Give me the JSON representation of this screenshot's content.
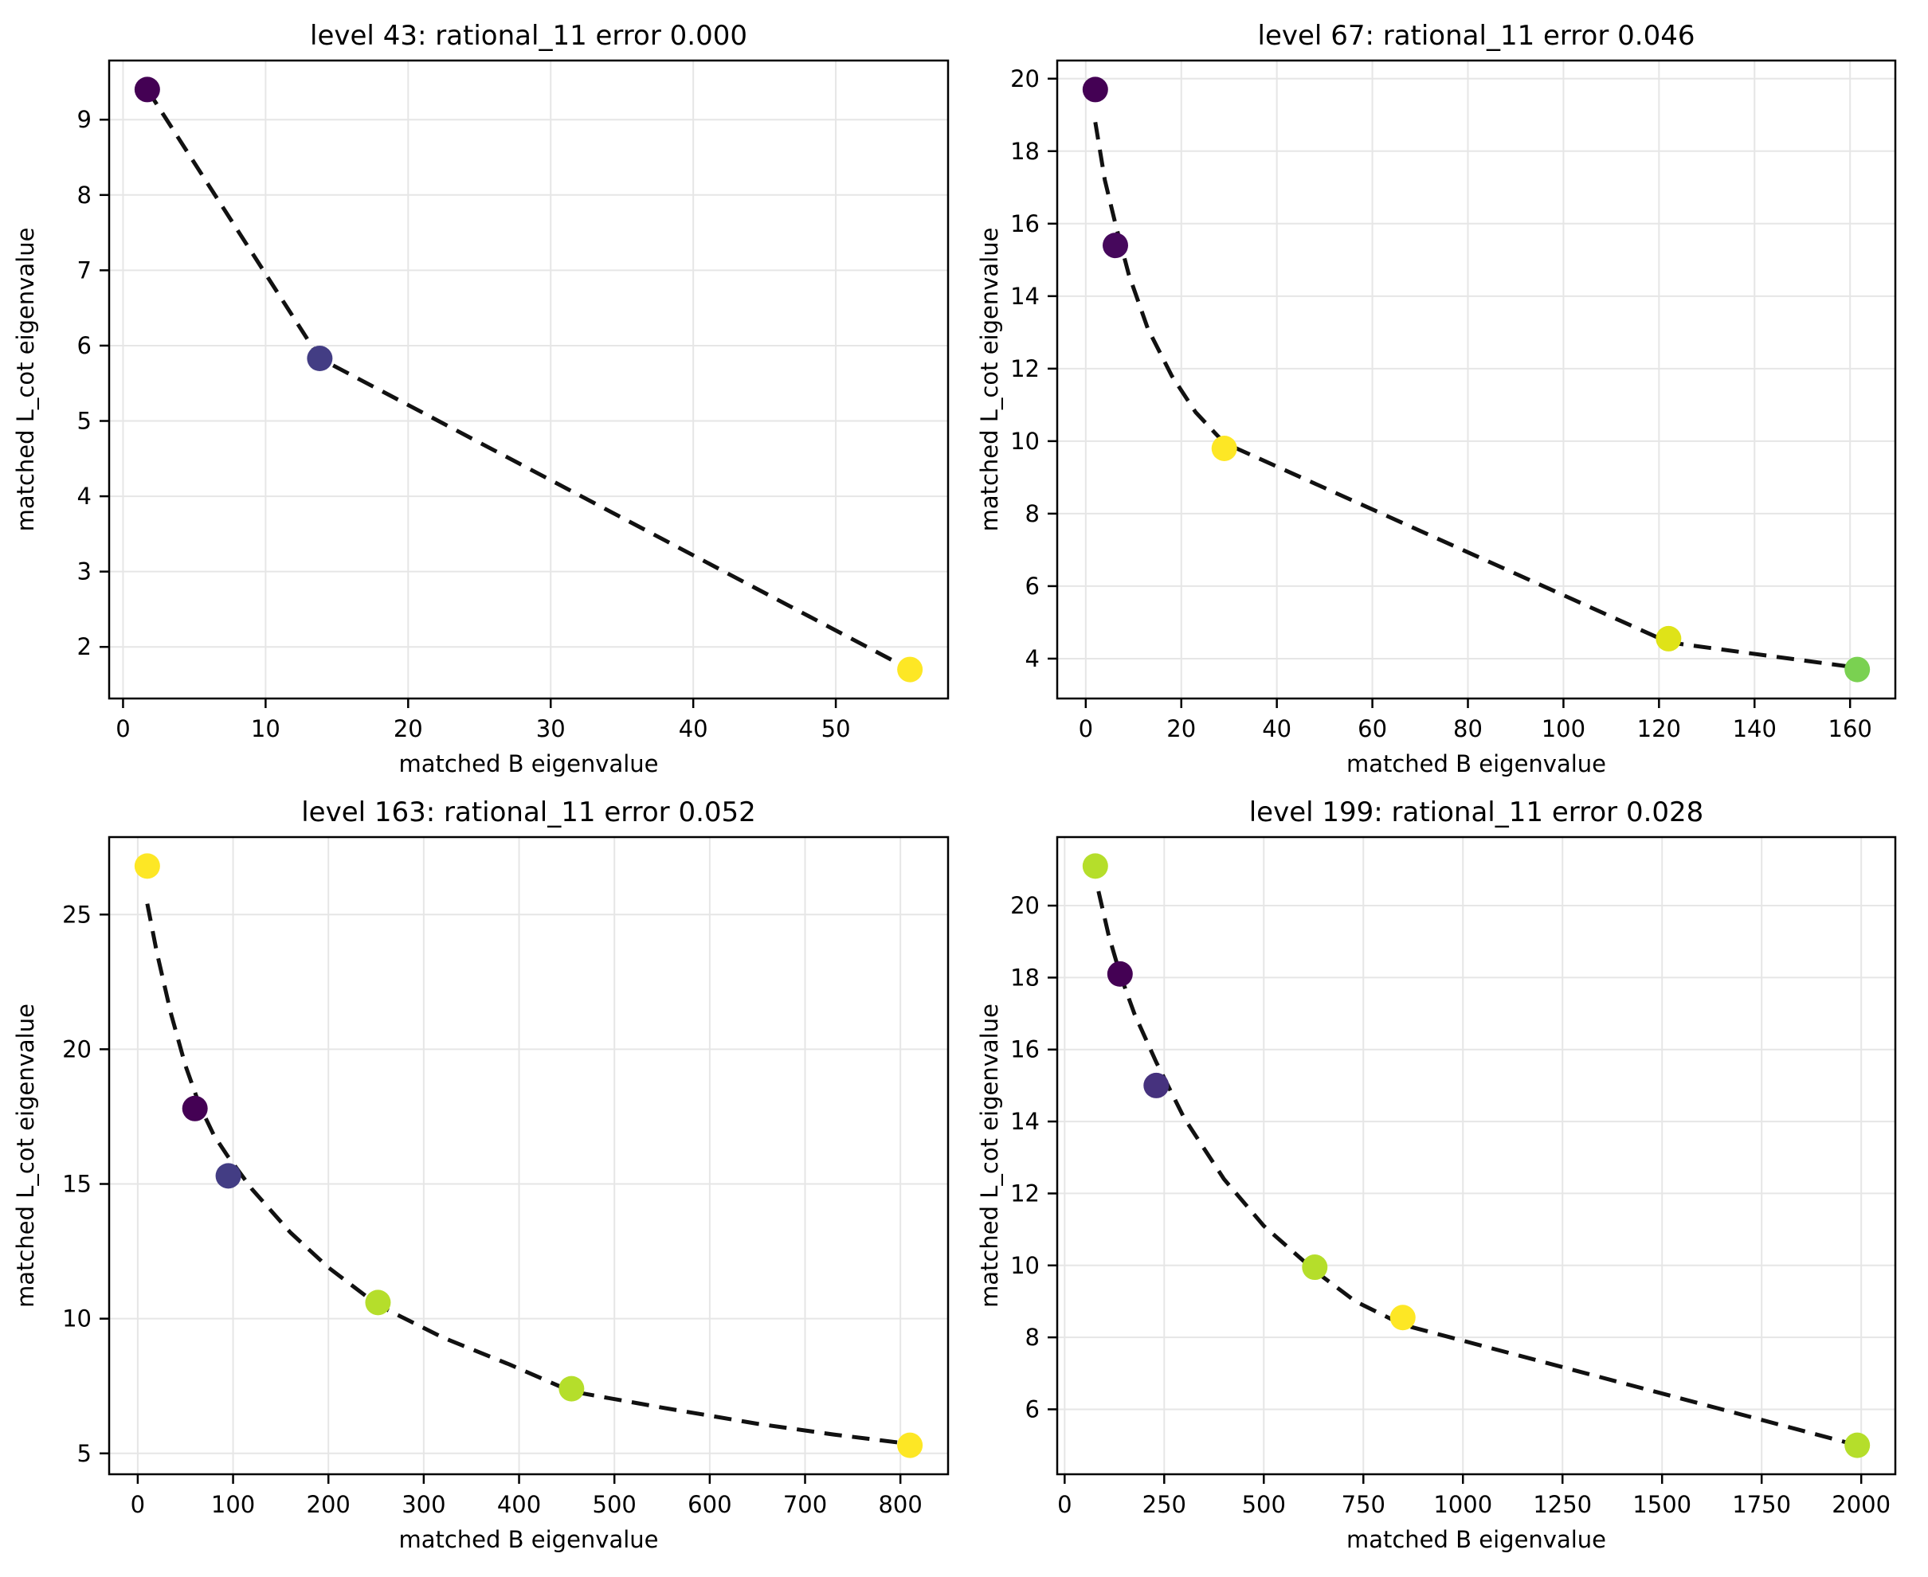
{
  "figure": {
    "background": "#ffffff",
    "grid_color": "#e6e6e6",
    "spine_color": "#000000",
    "fit_line_color": "#111111",
    "text_color": "#000000"
  },
  "chart_data": [
    {
      "type": "scatter",
      "title": "level 43: rational_11 error 0.000",
      "xlabel": "matched B eigenvalue",
      "ylabel": "matched L_cot eigenvalue",
      "grid": true,
      "legend": null,
      "xticks": [
        0,
        10,
        20,
        30,
        40,
        50
      ],
      "yticks": [
        2,
        3,
        4,
        5,
        6,
        7,
        8,
        9
      ],
      "points": [
        {
          "x": 1.7,
          "y": 9.4,
          "color": "#440154"
        },
        {
          "x": 13.8,
          "y": 5.83,
          "color": "#433d84"
        },
        {
          "x": 55.2,
          "y": 1.7,
          "color": "#fde725"
        }
      ],
      "fit_line": [
        [
          1.7,
          9.4
        ],
        [
          13.8,
          5.83
        ],
        [
          55.2,
          1.7
        ]
      ]
    },
    {
      "type": "scatter",
      "title": "level 67: rational_11 error 0.046",
      "xlabel": "matched B eigenvalue",
      "ylabel": "matched L_cot eigenvalue",
      "grid": true,
      "legend": null,
      "xticks": [
        0,
        20,
        40,
        60,
        80,
        100,
        120,
        140,
        160
      ],
      "yticks": [
        4,
        6,
        8,
        10,
        12,
        14,
        16,
        18,
        20
      ],
      "points": [
        {
          "x": 2,
          "y": 19.7,
          "color": "#440154"
        },
        {
          "x": 6.2,
          "y": 15.4,
          "color": "#46085c"
        },
        {
          "x": 29,
          "y": 9.8,
          "color": "#fde725"
        },
        {
          "x": 122,
          "y": 4.55,
          "color": "#dfe318"
        },
        {
          "x": 161.5,
          "y": 3.7,
          "color": "#7ad151"
        }
      ],
      "fit_line": [
        [
          2,
          18.8
        ],
        [
          4,
          17.2
        ],
        [
          6.2,
          16.0
        ],
        [
          9,
          14.6
        ],
        [
          13,
          13.1
        ],
        [
          18,
          11.8
        ],
        [
          23,
          10.8
        ],
        [
          29,
          9.95
        ],
        [
          122,
          4.45
        ],
        [
          161.5,
          3.75
        ]
      ]
    },
    {
      "type": "scatter",
      "title": "level 163: rational_11 error 0.052",
      "xlabel": "matched B eigenvalue",
      "ylabel": "matched L_cot eigenvalue",
      "grid": true,
      "legend": null,
      "xticks": [
        0,
        100,
        200,
        300,
        400,
        500,
        600,
        700,
        800
      ],
      "yticks": [
        5,
        10,
        15,
        20,
        25
      ],
      "points": [
        {
          "x": 10,
          "y": 26.8,
          "color": "#fde725"
        },
        {
          "x": 60,
          "y": 17.8,
          "color": "#440154"
        },
        {
          "x": 95,
          "y": 15.3,
          "color": "#433d84"
        },
        {
          "x": 252,
          "y": 10.6,
          "color": "#b5de2b"
        },
        {
          "x": 455,
          "y": 7.4,
          "color": "#b5de2b"
        },
        {
          "x": 810,
          "y": 5.3,
          "color": "#fde725"
        }
      ],
      "fit_line": [
        [
          10,
          25.4
        ],
        [
          20,
          23.6
        ],
        [
          35,
          21.3
        ],
        [
          50,
          19.4
        ],
        [
          65,
          17.9
        ],
        [
          80,
          16.8
        ],
        [
          95,
          16.0
        ],
        [
          120,
          14.8
        ],
        [
          160,
          13.2
        ],
        [
          200,
          11.9
        ],
        [
          252,
          10.5
        ],
        [
          320,
          9.3
        ],
        [
          390,
          8.3
        ],
        [
          455,
          7.3
        ],
        [
          550,
          6.7
        ],
        [
          650,
          6.1
        ],
        [
          730,
          5.7
        ],
        [
          810,
          5.35
        ]
      ]
    },
    {
      "type": "scatter",
      "title": "level 199: rational_11 error 0.028",
      "xlabel": "matched B eigenvalue",
      "ylabel": "matched L_cot eigenvalue",
      "grid": true,
      "legend": null,
      "xticks": [
        0,
        250,
        500,
        750,
        1000,
        1250,
        1500,
        1750,
        2000
      ],
      "yticks": [
        6,
        8,
        10,
        12,
        14,
        16,
        18,
        20
      ],
      "points": [
        {
          "x": 77,
          "y": 21.1,
          "color": "#b5de2b"
        },
        {
          "x": 139,
          "y": 18.1,
          "color": "#440154"
        },
        {
          "x": 230,
          "y": 15.0,
          "color": "#46327e"
        },
        {
          "x": 628,
          "y": 9.95,
          "color": "#b5de2b"
        },
        {
          "x": 849,
          "y": 8.55,
          "color": "#fde725"
        },
        {
          "x": 1990,
          "y": 5.0,
          "color": "#b5de2b"
        }
      ],
      "fit_line": [
        [
          85,
          20.4
        ],
        [
          110,
          19.2
        ],
        [
          139,
          18.1
        ],
        [
          175,
          17.0
        ],
        [
          230,
          15.65
        ],
        [
          300,
          14.1
        ],
        [
          400,
          12.4
        ],
        [
          500,
          11.1
        ],
        [
          628,
          9.85
        ],
        [
          730,
          9.0
        ],
        [
          849,
          8.35
        ],
        [
          1990,
          5.0
        ]
      ]
    }
  ]
}
